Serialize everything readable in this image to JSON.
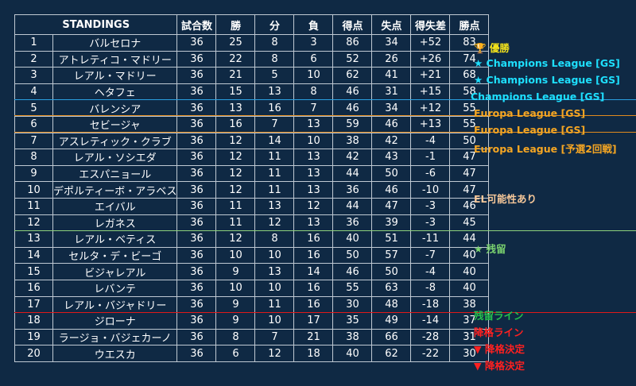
{
  "header": {
    "title": "STANDINGS",
    "played": "試合数",
    "wins": "勝",
    "draws": "分",
    "losses": "負",
    "goals_for": "得点",
    "goals_against": "失点",
    "goal_diff": "得失差",
    "points": "勝点"
  },
  "rows": [
    {
      "rank": "1",
      "team": "バルセロナ",
      "played": "36",
      "w": "25",
      "d": "8",
      "l": "3",
      "gf": "86",
      "ga": "34",
      "gd": "+52",
      "pts": "83"
    },
    {
      "rank": "2",
      "team": "アトレティコ・マドリー",
      "played": "36",
      "w": "22",
      "d": "8",
      "l": "6",
      "gf": "52",
      "ga": "26",
      "gd": "+26",
      "pts": "74"
    },
    {
      "rank": "3",
      "team": "レアル・マドリー",
      "played": "36",
      "w": "21",
      "d": "5",
      "l": "10",
      "gf": "62",
      "ga": "41",
      "gd": "+21",
      "pts": "68"
    },
    {
      "rank": "4",
      "team": "ヘタフェ",
      "played": "36",
      "w": "15",
      "d": "13",
      "l": "8",
      "gf": "46",
      "ga": "31",
      "gd": "+15",
      "pts": "58"
    },
    {
      "rank": "5",
      "team": "バレンシア",
      "played": "36",
      "w": "13",
      "d": "16",
      "l": "7",
      "gf": "46",
      "ga": "34",
      "gd": "+12",
      "pts": "55"
    },
    {
      "rank": "6",
      "team": "セビージャ",
      "played": "36",
      "w": "16",
      "d": "7",
      "l": "13",
      "gf": "59",
      "ga": "46",
      "gd": "+13",
      "pts": "55"
    },
    {
      "rank": "7",
      "team": "アスレティック・クラブ",
      "played": "36",
      "w": "12",
      "d": "14",
      "l": "10",
      "gf": "38",
      "ga": "42",
      "gd": "-4",
      "pts": "50"
    },
    {
      "rank": "8",
      "team": "レアル・ソシエダ",
      "played": "36",
      "w": "12",
      "d": "11",
      "l": "13",
      "gf": "42",
      "ga": "43",
      "gd": "-1",
      "pts": "47"
    },
    {
      "rank": "9",
      "team": "エスパニョール",
      "played": "36",
      "w": "12",
      "d": "11",
      "l": "13",
      "gf": "44",
      "ga": "50",
      "gd": "-6",
      "pts": "47"
    },
    {
      "rank": "10",
      "team": "デポルティーボ・アラベス",
      "played": "36",
      "w": "12",
      "d": "11",
      "l": "13",
      "gf": "36",
      "ga": "46",
      "gd": "-10",
      "pts": "47"
    },
    {
      "rank": "11",
      "team": "エイバル",
      "played": "36",
      "w": "11",
      "d": "13",
      "l": "12",
      "gf": "44",
      "ga": "47",
      "gd": "-3",
      "pts": "46"
    },
    {
      "rank": "12",
      "team": "レガネス",
      "played": "36",
      "w": "11",
      "d": "12",
      "l": "13",
      "gf": "36",
      "ga": "39",
      "gd": "-3",
      "pts": "45"
    },
    {
      "rank": "13",
      "team": "レアル・ベティス",
      "played": "36",
      "w": "12",
      "d": "8",
      "l": "16",
      "gf": "40",
      "ga": "51",
      "gd": "-11",
      "pts": "44"
    },
    {
      "rank": "14",
      "team": "セルタ・デ・ビーゴ",
      "played": "36",
      "w": "10",
      "d": "10",
      "l": "16",
      "gf": "50",
      "ga": "57",
      "gd": "-7",
      "pts": "40"
    },
    {
      "rank": "15",
      "team": "ビジャレアル",
      "played": "36",
      "w": "9",
      "d": "13",
      "l": "14",
      "gf": "46",
      "ga": "50",
      "gd": "-4",
      "pts": "40"
    },
    {
      "rank": "16",
      "team": "レバンテ",
      "played": "36",
      "w": "10",
      "d": "10",
      "l": "16",
      "gf": "55",
      "ga": "63",
      "gd": "-8",
      "pts": "40"
    },
    {
      "rank": "17",
      "team": "レアル・バジャドリー",
      "played": "36",
      "w": "9",
      "d": "11",
      "l": "16",
      "gf": "30",
      "ga": "48",
      "gd": "-18",
      "pts": "38"
    },
    {
      "rank": "18",
      "team": "ジローナ",
      "played": "36",
      "w": "9",
      "d": "10",
      "l": "17",
      "gf": "35",
      "ga": "49",
      "gd": "-14",
      "pts": "37"
    },
    {
      "rank": "19",
      "team": "ラージョ・バジェカーノ",
      "played": "36",
      "w": "8",
      "d": "7",
      "l": "21",
      "gf": "38",
      "ga": "66",
      "gd": "-28",
      "pts": "31"
    },
    {
      "rank": "20",
      "team": "ウエスカ",
      "played": "36",
      "w": "6",
      "d": "12",
      "l": "18",
      "gf": "40",
      "ga": "62",
      "gd": "-22",
      "pts": "30"
    }
  ],
  "notes": {
    "champion": "🏆 優勝",
    "cl_gs_2": "★ Champions League [GS]",
    "cl_gs_3": "★ Champions League [GS]",
    "cl_gs_4": "Champions League [GS]",
    "el_gs_5": "Europa League [GS]",
    "el_gs_6": "Europa League [GS]",
    "el_q_7": "Europa League [予選2回戦]",
    "el_possible": "EL可能性あり",
    "safe": "★ 残留",
    "survival_line": "残留ライン",
    "relegation_line": "降格ライン",
    "relegated_19": "▼ 降格決定",
    "relegated_20": "▼ 降格決定"
  },
  "colors": {
    "background": "#0f2944",
    "champion": "#f2e21b",
    "champions_league": "#1ee0ff",
    "champions_league_line": "#2a9fe0",
    "europa_league": "#f5a623",
    "europa_line": "#e08a1e",
    "el_possible": "#f7c89a",
    "safe": "#7bd36f",
    "safe_line": "#8fd17d",
    "survival": "#25c24c",
    "relegation": "#ff2020",
    "relegation_line": "#e01919"
  }
}
